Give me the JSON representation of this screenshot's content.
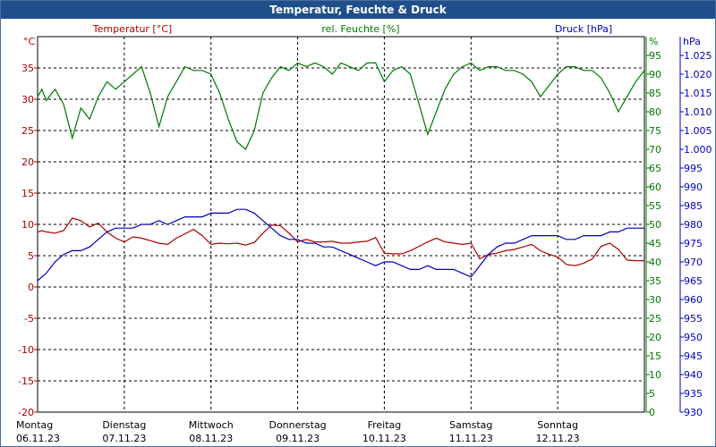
{
  "window": {
    "title": "Temperatur, Feuchte & Druck"
  },
  "chart_data": {
    "type": "line",
    "title": "Temperatur, Feuchte & Druck",
    "colors": {
      "temperature": "#aa0000",
      "humidity": "#007700",
      "pressure": "#0000bb"
    },
    "grid": true,
    "x_labels": [
      {
        "day": "Montag",
        "date": "06.11.23"
      },
      {
        "day": "Dienstag",
        "date": "07.11.23"
      },
      {
        "day": "Mittwoch",
        "date": "08.11.23"
      },
      {
        "day": "Donnerstag",
        "date": "09.11.23"
      },
      {
        "day": "Freitag",
        "date": "10.11.23"
      },
      {
        "day": "Samstag",
        "date": "11.11.23"
      },
      {
        "day": "Sonntag",
        "date": "12.11.23"
      }
    ],
    "xlim": [
      0,
      7
    ],
    "axes": {
      "temperature": {
        "label": "Temperatur [°C]",
        "unit": "°C",
        "ylim": [
          -20,
          40
        ],
        "ticks": [
          "35",
          "30",
          "25",
          "20",
          "15",
          "10",
          "5",
          "0",
          "-5",
          "-10",
          "-15",
          "-20"
        ],
        "tick_values": [
          35,
          30,
          25,
          20,
          15,
          10,
          5,
          0,
          -5,
          -10,
          -15,
          -20
        ]
      },
      "humidity": {
        "label": "rel. Feuchte [%]",
        "unit": "%",
        "ylim": [
          0,
          100
        ],
        "ticks": [
          "95",
          "90",
          "85",
          "80",
          "75",
          "70",
          "65",
          "60",
          "55",
          "50",
          "45",
          "40",
          "35",
          "30",
          "25",
          "20",
          "15",
          "10",
          "5",
          "0"
        ],
        "tick_values": [
          95,
          90,
          85,
          80,
          75,
          70,
          65,
          60,
          55,
          50,
          45,
          40,
          35,
          30,
          25,
          20,
          15,
          10,
          5,
          0
        ]
      },
      "pressure": {
        "label": "Druck [hPa]",
        "unit": "hPa",
        "ylim": [
          930,
          1030
        ],
        "ticks": [
          "1.025",
          "1.020",
          "1.015",
          "1.010",
          "1.005",
          "1.000",
          "995",
          "990",
          "985",
          "980",
          "975",
          "970",
          "965",
          "960",
          "955",
          "950",
          "945",
          "940",
          "935",
          "930"
        ],
        "tick_values": [
          1025,
          1020,
          1015,
          1010,
          1005,
          1000,
          995,
          990,
          985,
          980,
          975,
          970,
          965,
          960,
          955,
          950,
          945,
          940,
          935,
          930
        ]
      }
    },
    "series": [
      {
        "name": "Temperatur [°C]",
        "axis": "temperature",
        "x": [
          0,
          0.05,
          0.1,
          0.2,
          0.3,
          0.4,
          0.5,
          0.6,
          0.7,
          0.8,
          0.9,
          1.0,
          1.1,
          1.2,
          1.3,
          1.4,
          1.5,
          1.6,
          1.7,
          1.8,
          1.9,
          2.0,
          2.1,
          2.2,
          2.3,
          2.4,
          2.5,
          2.6,
          2.7,
          2.8,
          2.9,
          3.0,
          3.1,
          3.2,
          3.3,
          3.4,
          3.5,
          3.6,
          3.7,
          3.8,
          3.9,
          4.0,
          4.1,
          4.2,
          4.3,
          4.4,
          4.5,
          4.6,
          4.7,
          4.8,
          4.9,
          5.0,
          5.1,
          5.2,
          5.3,
          5.4,
          5.5,
          5.6,
          5.7,
          5.8,
          5.9,
          6.0,
          6.1,
          6.2,
          6.3,
          6.4,
          6.5,
          6.6,
          6.7,
          6.8,
          6.9,
          7.0
        ],
        "values": [
          8.8,
          9.0,
          8.8,
          8.6,
          9.0,
          11.0,
          10.6,
          9.6,
          10.2,
          8.8,
          7.8,
          7.2,
          8.0,
          7.8,
          7.4,
          7.0,
          6.8,
          7.8,
          8.5,
          9.2,
          8.2,
          6.8,
          7.0,
          6.9,
          7.0,
          6.7,
          7.1,
          8.6,
          9.9,
          9.8,
          8.6,
          7.2,
          7.6,
          7.2,
          7.2,
          7.3,
          7.0,
          7.0,
          7.2,
          7.3,
          7.9,
          5.4,
          5.3,
          5.3,
          5.8,
          6.5,
          7.2,
          7.8,
          7.2,
          7.0,
          6.8,
          7.0,
          4.5,
          5.2,
          5.4,
          5.8,
          6.0,
          6.4,
          6.8,
          5.8,
          5.2,
          4.8,
          3.6,
          3.4,
          3.8,
          4.5,
          6.5,
          7.0,
          6.0,
          4.3,
          4.2,
          4.2
        ]
      },
      {
        "name": "rel. Feuchte [%]",
        "axis": "humidity",
        "x": [
          0,
          0.05,
          0.1,
          0.2,
          0.3,
          0.4,
          0.5,
          0.6,
          0.7,
          0.8,
          0.9,
          1.0,
          1.1,
          1.2,
          1.3,
          1.4,
          1.5,
          1.6,
          1.7,
          1.8,
          1.9,
          2.0,
          2.1,
          2.2,
          2.3,
          2.4,
          2.5,
          2.6,
          2.7,
          2.8,
          2.9,
          3.0,
          3.1,
          3.2,
          3.3,
          3.4,
          3.5,
          3.6,
          3.7,
          3.8,
          3.9,
          4.0,
          4.1,
          4.2,
          4.3,
          4.4,
          4.5,
          4.6,
          4.7,
          4.8,
          4.9,
          5.0,
          5.1,
          5.2,
          5.3,
          5.4,
          5.5,
          5.6,
          5.7,
          5.8,
          5.9,
          6.0,
          6.1,
          6.2,
          6.3,
          6.4,
          6.5,
          6.6,
          6.7,
          6.8,
          6.9,
          7.0
        ],
        "values": [
          84,
          86,
          83,
          86,
          82,
          73,
          81,
          78,
          84,
          88,
          86,
          88,
          90,
          92,
          85,
          76,
          84,
          88,
          92,
          91,
          91,
          90,
          85,
          78,
          72,
          70,
          75,
          85,
          89,
          92,
          91,
          93,
          92,
          93,
          92,
          90,
          93,
          92,
          91,
          93,
          93,
          88,
          91,
          92,
          90,
          82,
          74,
          80,
          86,
          90,
          92,
          93,
          91,
          92,
          92,
          91,
          91,
          90,
          88,
          84,
          87,
          90,
          92,
          92,
          91,
          91,
          89,
          85,
          80,
          84,
          88,
          91
        ],
        "note_ignore": ""
      },
      {
        "name": "Druck [hPa]",
        "axis": "pressure",
        "x": [
          0,
          0.1,
          0.2,
          0.3,
          0.4,
          0.5,
          0.6,
          0.7,
          0.8,
          0.9,
          1.0,
          1.1,
          1.2,
          1.3,
          1.4,
          1.5,
          1.6,
          1.7,
          1.8,
          1.9,
          2.0,
          2.1,
          2.2,
          2.3,
          2.4,
          2.5,
          2.6,
          2.7,
          2.8,
          2.9,
          3.0,
          3.1,
          3.2,
          3.3,
          3.4,
          3.5,
          3.6,
          3.7,
          3.8,
          3.9,
          4.0,
          4.1,
          4.2,
          4.3,
          4.4,
          4.5,
          4.6,
          4.7,
          4.8,
          4.9,
          5.0,
          5.1,
          5.2,
          5.3,
          5.4,
          5.5,
          5.6,
          5.7,
          5.8,
          5.9,
          6.0,
          6.1,
          6.2,
          6.3,
          6.4,
          6.5,
          6.6,
          6.7,
          6.8,
          6.9,
          7.0
        ],
        "values": [
          965,
          967,
          970,
          972,
          973,
          973,
          974,
          976,
          978,
          979,
          979,
          979,
          980,
          980,
          981,
          980,
          981,
          982,
          982,
          982,
          983,
          983,
          983,
          984,
          984,
          983,
          981,
          979,
          977,
          976,
          976,
          975,
          975,
          974,
          974,
          973,
          972,
          971,
          970,
          969,
          970,
          970,
          969,
          968,
          968,
          969,
          968,
          968,
          968,
          967,
          966,
          969,
          972,
          974,
          975,
          975,
          976,
          977,
          977,
          977,
          977,
          976,
          976,
          977,
          977,
          977,
          978,
          978,
          979,
          979,
          979
        ]
      }
    ]
  }
}
